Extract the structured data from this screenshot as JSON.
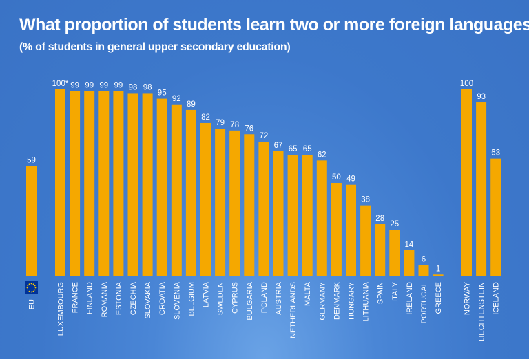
{
  "chart_data": {
    "type": "bar",
    "title": "What proportion of students learn two or more foreign languages?",
    "subtitle": "(% of students in general upper secondary education)",
    "ylim": [
      0,
      100
    ],
    "grid": false,
    "bar_color": "#f5a800",
    "background_color": "#3d78cb",
    "eu_flag_color": "#003399",
    "eu_star_color": "#ffcc00",
    "groups": [
      {
        "categories": [
          "EU"
        ],
        "values": [
          59
        ],
        "labels": [
          "59"
        ]
      },
      {
        "categories": [
          "LUXEMBOURG",
          "FRANCE",
          "FINLAND",
          "ROMANIA",
          "ESTONIA",
          "CZECHIA",
          "SLOVAKIA",
          "CROATIA",
          "SLOVENIA",
          "BELGIUM",
          "LATVIA",
          "SWEDEN",
          "CYPRUS",
          "BULGARIA",
          "POLAND",
          "AUSTRIA",
          "NETHERLANDS",
          "MALTA",
          "GERMANY",
          "DENMARK",
          "HUNGARY",
          "LITHUANIA",
          "SPAIN",
          "ITALY",
          "IRELAND",
          "PORTUGAL",
          "GREECE"
        ],
        "values": [
          100,
          99,
          99,
          99,
          99,
          98,
          98,
          95,
          92,
          89,
          82,
          79,
          78,
          76,
          72,
          67,
          65,
          65,
          62,
          50,
          49,
          38,
          28,
          25,
          14,
          6,
          1
        ],
        "labels": [
          "100*",
          "99",
          "99",
          "99",
          "99",
          "98",
          "98",
          "95",
          "92",
          "89",
          "82",
          "79",
          "78",
          "76",
          "72",
          "67",
          "65",
          "65",
          "62",
          "50",
          "49",
          "38",
          "28",
          "25",
          "14",
          "6",
          "1"
        ]
      },
      {
        "categories": [
          "NORWAY",
          "LIECHTENSTEIN",
          "ICELAND"
        ],
        "values": [
          100,
          93,
          63
        ],
        "labels": [
          "100",
          "93",
          "63"
        ]
      }
    ]
  }
}
